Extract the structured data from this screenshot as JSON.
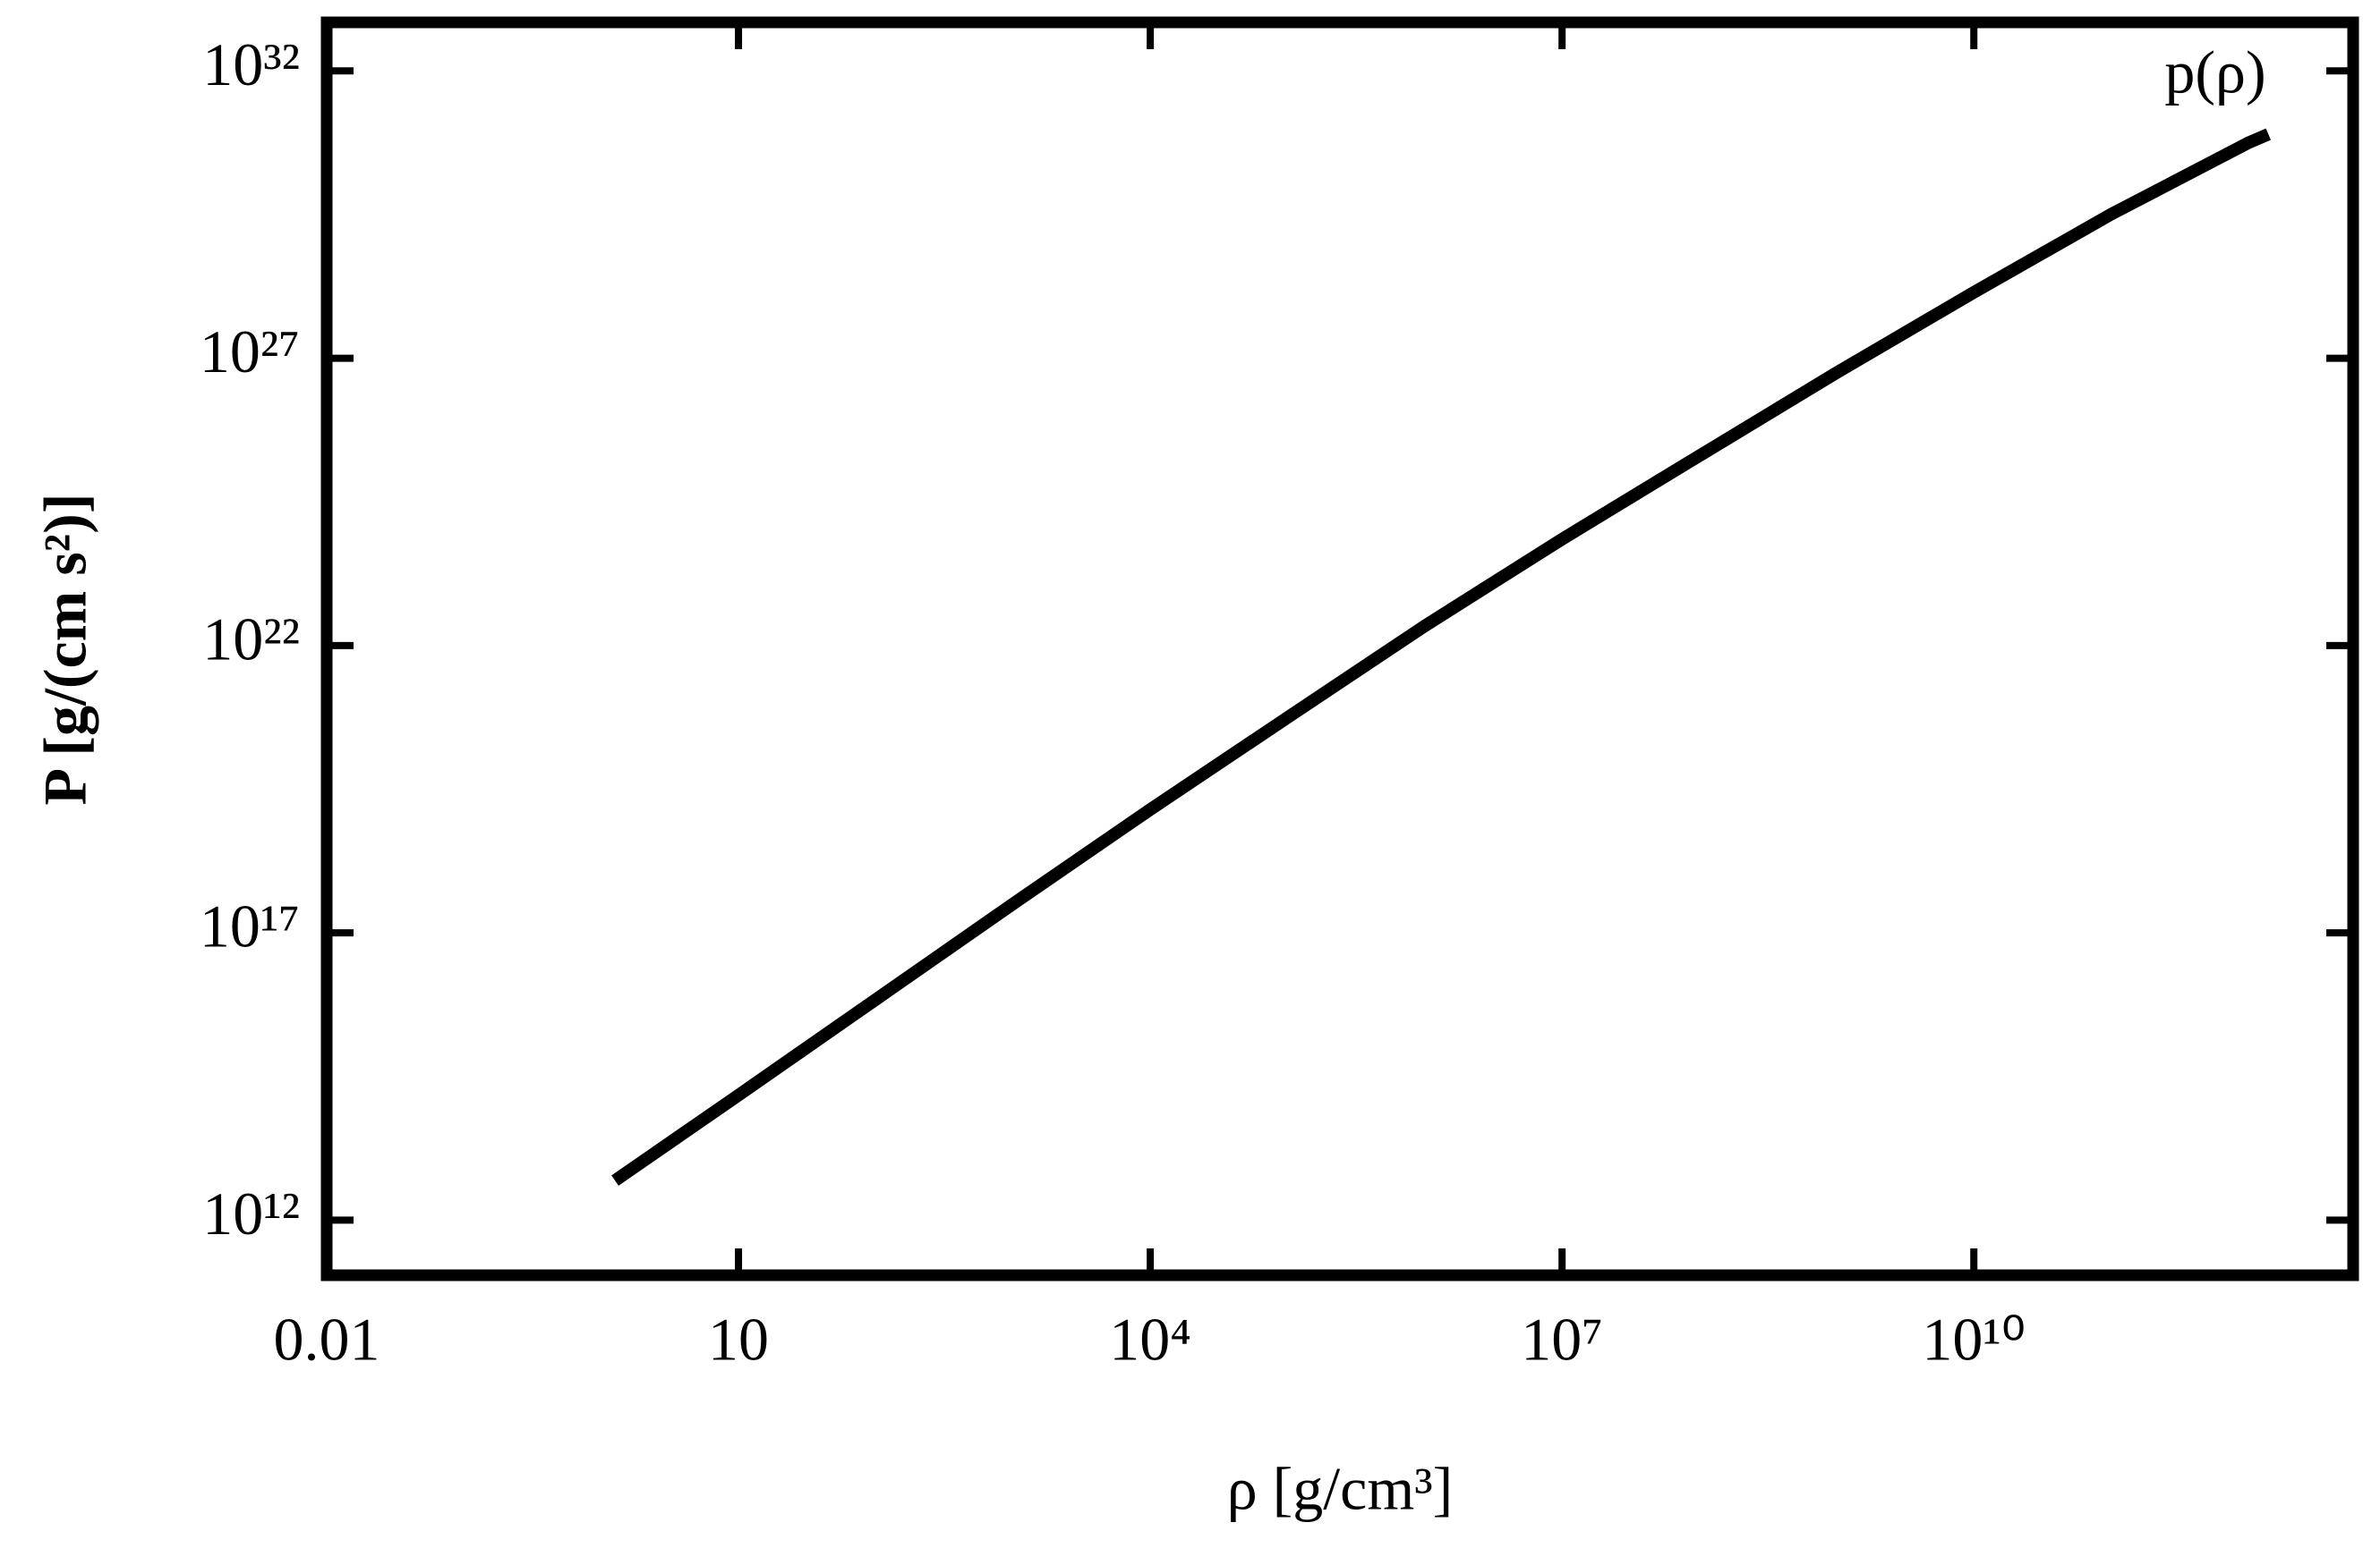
{
  "chart_data": {
    "type": "line",
    "xlabel": "ρ [g/cm³]",
    "ylabel": "P [g/(cm s²)]",
    "annotation": "p(ρ)",
    "xscale": "log",
    "yscale": "log",
    "xlim": [
      0.01,
      5800000000000.0
    ],
    "ylim": [
      110000000000.0,
      7e+32
    ],
    "xticks": [
      0.01,
      10,
      {
        "value": 10000,
        "label": "10⁴"
      },
      {
        "value": 10000000,
        "label": "10⁷"
      },
      {
        "value": 10000000000,
        "label": "10¹⁰"
      }
    ],
    "yticks": [
      {
        "value": 1000000000000.0,
        "label": "10¹²"
      },
      {
        "value": 1e+17,
        "label": "10¹⁷"
      },
      {
        "value": 1e+22,
        "label": "10²²"
      },
      {
        "value": 1e+27,
        "label": "10²⁷"
      },
      {
        "value": 1e+32,
        "label": "10³²"
      }
    ],
    "series": [
      {
        "name": "p(ρ)",
        "color": "#000000",
        "x": [
          1.26,
          10,
          100,
          1000,
          10000,
          100000,
          1000000,
          10000000,
          100000000,
          1000000000,
          10000000000,
          100000000000,
          1000000000000,
          1400000000000
        ],
        "values": [
          4900000000000.0,
          150000000000000.0,
          6900000000000000.0,
          3.2e+17,
          1.4e+19,
          5.6e+20,
          2.2e+22,
          7.1e+23,
          2e+25,
          5.6e+26,
          1.4e+28,
          3.2e+29,
          5.6e+30,
          7.9e+30
        ]
      }
    ]
  }
}
